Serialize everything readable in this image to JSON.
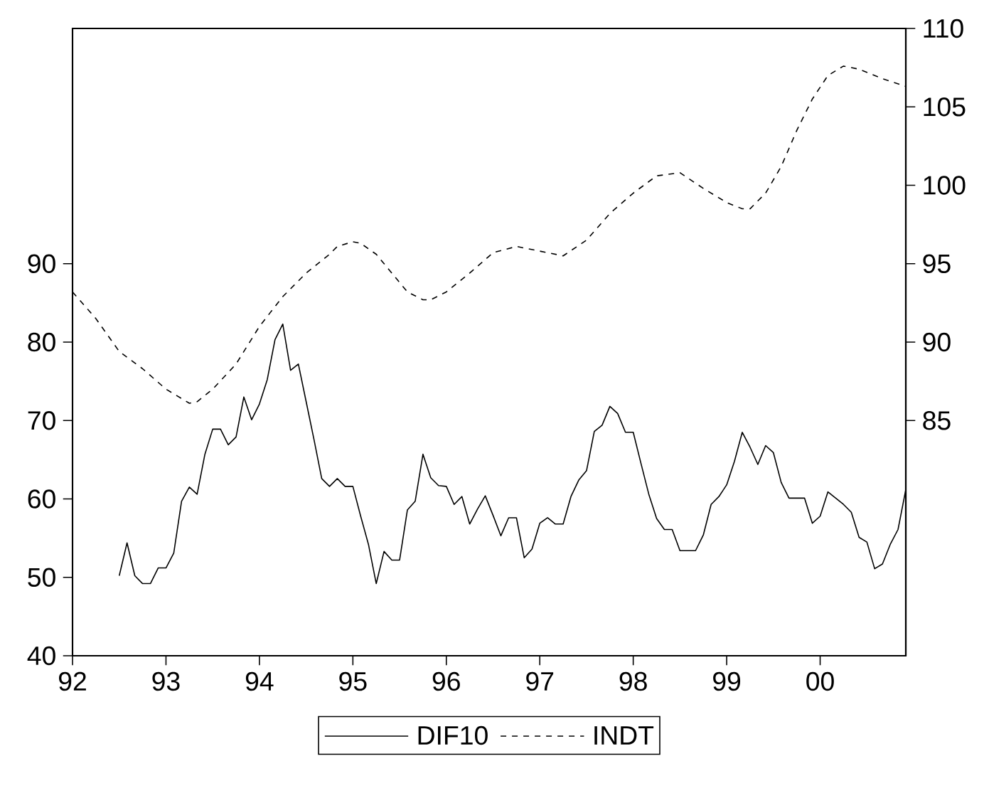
{
  "chart_data": {
    "type": "line",
    "xlim": [
      "1992-01",
      "2000-12"
    ],
    "xticks": [
      {
        "value": "1992-01",
        "label": "92"
      },
      {
        "value": "1993-01",
        "label": "93"
      },
      {
        "value": "1994-01",
        "label": "94"
      },
      {
        "value": "1995-01",
        "label": "95"
      },
      {
        "value": "1996-01",
        "label": "96"
      },
      {
        "value": "1997-01",
        "label": "97"
      },
      {
        "value": "1998-01",
        "label": "98"
      },
      {
        "value": "1999-01",
        "label": "99"
      },
      {
        "value": "2000-01",
        "label": "00"
      }
    ],
    "ylim": [
      40,
      120
    ],
    "yticks": [
      40,
      50,
      60,
      70,
      80,
      90
    ],
    "y2lim": [
      70,
      110
    ],
    "y2ticks": [
      85,
      90,
      95,
      100,
      105,
      110
    ],
    "legend": "bottom",
    "series": [
      {
        "name": "DIF10",
        "color": "#000000",
        "line_style": "solid",
        "x": [
          "1992-07",
          "1992-08",
          "1992-09",
          "1992-10",
          "1992-11",
          "1992-12",
          "1993-01",
          "1993-02",
          "1993-03",
          "1993-04",
          "1993-05",
          "1993-06",
          "1993-07",
          "1993-08",
          "1993-09",
          "1993-10",
          "1993-11",
          "1993-12",
          "1994-01",
          "1994-02",
          "1994-03",
          "1994-04",
          "1994-05",
          "1994-06",
          "1994-07",
          "1994-08",
          "1994-09",
          "1994-10",
          "1994-11",
          "1994-12",
          "1995-01",
          "1995-02",
          "1995-03",
          "1995-04",
          "1995-05",
          "1995-06",
          "1995-07",
          "1995-08",
          "1995-09",
          "1995-10",
          "1995-11",
          "1995-12",
          "1996-01",
          "1996-02",
          "1996-03",
          "1996-04",
          "1996-05",
          "1996-06",
          "1996-07",
          "1996-08",
          "1996-09",
          "1996-10",
          "1996-11",
          "1996-12",
          "1997-01",
          "1997-02",
          "1997-03",
          "1997-04",
          "1997-05",
          "1997-06",
          "1997-07",
          "1997-08",
          "1997-09",
          "1997-10",
          "1997-11",
          "1997-12",
          "1998-01",
          "1998-02",
          "1998-03",
          "1998-04",
          "1998-05",
          "1998-06",
          "1998-07",
          "1998-08",
          "1998-09",
          "1998-10",
          "1998-11",
          "1998-12",
          "1999-01",
          "1999-02",
          "1999-03",
          "1999-04",
          "1999-05",
          "1999-06",
          "1999-07",
          "1999-08",
          "1999-09",
          "1999-10",
          "1999-11",
          "1999-12",
          "2000-01",
          "2000-02",
          "2000-03",
          "2000-04",
          "2000-05",
          "2000-06",
          "2000-07",
          "2000-08",
          "2000-09",
          "2000-10",
          "2000-11",
          "2000-12"
        ],
        "values": [
          50.2,
          54.4,
          50.2,
          49.2,
          49.2,
          51.2,
          51.2,
          53.1,
          59.7,
          61.5,
          60.6,
          65.7,
          68.9,
          68.9,
          66.9,
          67.9,
          73.0,
          70.1,
          72.1,
          75.2,
          80.3,
          82.3,
          76.4,
          77.2,
          72.4,
          67.6,
          62.6,
          61.6,
          62.6,
          61.6,
          61.6,
          57.8,
          54.2,
          49.2,
          53.3,
          52.2,
          52.2,
          58.6,
          59.7,
          65.7,
          62.7,
          61.7,
          61.6,
          59.3,
          60.3,
          56.8,
          58.7,
          60.4,
          57.9,
          55.3,
          57.6,
          57.6,
          52.5,
          53.6,
          56.9,
          57.6,
          56.8,
          56.8,
          60.3,
          62.4,
          63.6,
          68.6,
          69.4,
          71.8,
          70.9,
          68.5,
          68.5,
          64.5,
          60.6,
          57.5,
          56.1,
          56.1,
          53.4,
          53.4,
          53.4,
          55.4,
          59.3,
          60.3,
          61.8,
          64.8,
          68.5,
          66.6,
          64.4,
          66.8,
          65.9,
          62.1,
          60.1,
          60.1,
          60.1,
          56.9,
          57.8,
          60.9,
          60.1,
          59.3,
          58.3,
          55.1,
          54.5,
          51.1,
          51.7,
          54.2,
          56.1,
          61.2
        ]
      },
      {
        "name": "INDT",
        "color": "#000000",
        "line_style": "dashed",
        "axis": "y2",
        "x": [
          "1992-01",
          "1992-04",
          "1992-07",
          "1992-10",
          "1993-01",
          "1993-04",
          "1993-05",
          "1993-07",
          "1993-10",
          "1994-01",
          "1994-04",
          "1994-07",
          "1994-10",
          "1994-11",
          "1995-01",
          "1995-02",
          "1995-04",
          "1995-06",
          "1995-08",
          "1995-10",
          "1995-11",
          "1996-01",
          "1996-04",
          "1996-07",
          "1996-10",
          "1997-01",
          "1997-04",
          "1997-07",
          "1997-10",
          "1998-01",
          "1998-04",
          "1998-07",
          "1998-10",
          "1999-01",
          "1999-03",
          "1999-04",
          "1999-06",
          "1999-08",
          "1999-10",
          "1999-12",
          "2000-02",
          "2000-04",
          "2000-06",
          "2000-09",
          "2000-12"
        ],
        "values": [
          93.2,
          91.5,
          89.4,
          88.3,
          87.0,
          86.1,
          86.2,
          87.0,
          88.6,
          91.0,
          92.9,
          94.4,
          95.6,
          96.1,
          96.4,
          96.3,
          95.6,
          94.4,
          93.2,
          92.7,
          92.7,
          93.2,
          94.4,
          95.7,
          96.1,
          95.8,
          95.5,
          96.5,
          98.2,
          99.5,
          100.6,
          100.8,
          99.8,
          98.9,
          98.5,
          98.5,
          99.5,
          101.2,
          103.5,
          105.5,
          107.0,
          107.6,
          107.4,
          106.8,
          106.3
        ]
      }
    ]
  }
}
